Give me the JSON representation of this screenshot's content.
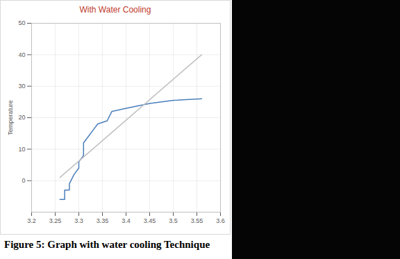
{
  "chart_data": {
    "type": "line",
    "title": "With Water Cooling",
    "caption": "Figure 5: Graph with water cooling Technique",
    "y_label": "Temperature",
    "xlim": [
      3.2,
      3.6
    ],
    "xticks": [
      3.2,
      3.25,
      3.3,
      3.35,
      3.4,
      3.45,
      3.5,
      3.55,
      3.6
    ],
    "ylim": [
      -10,
      50
    ],
    "yticks": [
      0,
      10,
      20,
      30,
      40,
      50
    ],
    "grid": true,
    "series": [
      {
        "color": "#4a7ebb",
        "x": [
          3.26,
          3.27,
          3.27,
          3.28,
          3.28,
          3.29,
          3.3,
          3.3,
          3.31,
          3.31,
          3.32,
          3.33,
          3.34,
          3.36,
          3.37,
          3.4,
          3.45,
          3.5,
          3.56
        ],
        "values": [
          -6,
          -6,
          -3,
          -3,
          -1,
          2,
          4,
          6,
          8,
          12,
          14,
          16,
          18,
          19,
          22,
          23,
          24.5,
          25.5,
          26
        ]
      },
      {
        "color": "#bfbfbf",
        "x": [
          3.26,
          3.56
        ],
        "values": [
          1,
          40
        ]
      }
    ]
  }
}
